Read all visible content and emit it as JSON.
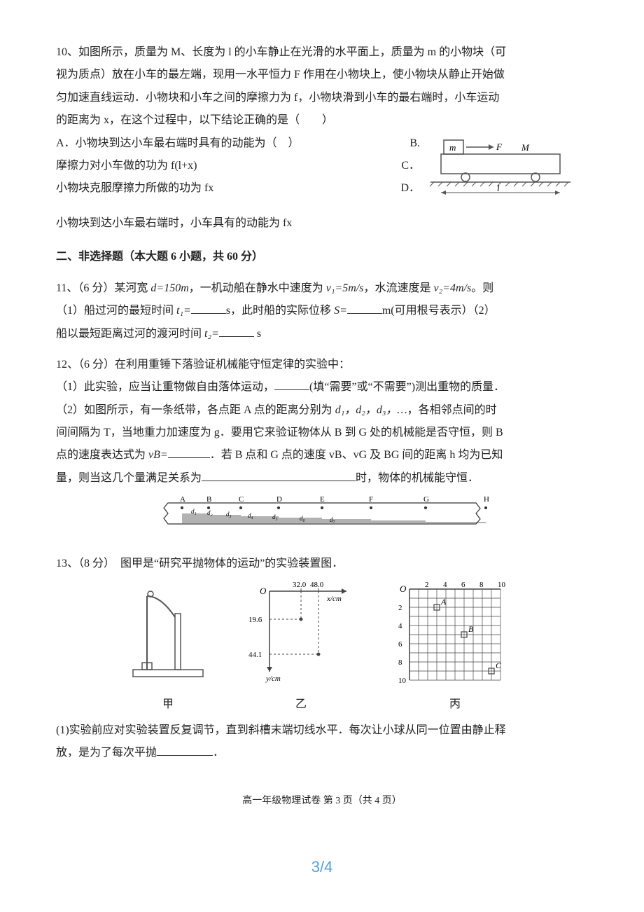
{
  "q10": {
    "stem_l1": "10、如图所示，质量为 M、长度为 l 的小车静止在光滑的水平面上，质量为 m 的小物块（可",
    "stem_l2": "视为质点）放在小车的最左端，现用一水平恒力 F 作用在小物块上，使小物块从静止开始做",
    "stem_l3": "匀加速直线运动．小物块和小车之间的摩擦力为 f，小物块滑到小车的最右端时，小车运动",
    "stem_l4": "的距离为 x，在这个过程中，以下结论正确的是（　　）",
    "optA": "A．小物块到达小车最右端时具有的动能为（　）",
    "optB_tail": "B.",
    "line_mid": "摩擦力对小车做的功为 f(l+x)",
    "optC_tail": "C．",
    "line_c": "小物块克服摩擦力所做的功为 fx",
    "optD_tail": "D．",
    "line_d": "小物块到达小车最右端时，小车具有的动能为 fx",
    "diagram": {
      "colors": {
        "stroke": "#444",
        "fill": "#fff"
      },
      "m_label": "m",
      "F_label": "F",
      "M_label": "M",
      "l_label": "l"
    }
  },
  "section2_title": "二、非选择题（本大题 6 小题，共 60 分）",
  "q11": {
    "l1a": "11、（6 分）某河宽 ",
    "d_eq": "d=150m",
    "l1b": "，一机动船在静水中速度为 ",
    "v1_eq": "v₁=5m/s",
    "l1c": "，水流速度是 ",
    "v2_eq": "v₂=4m/s",
    "l1d": "。则",
    "l2a": "（1）船过河的最短时间 ",
    "t1_lbl": "t₁=",
    "l2b": "s，此时船的实际位移 ",
    "S_lbl": "S=",
    "l2c": "m(可用根号表示）（2）",
    "l3a": "船以最短距离过河的渡河时间 ",
    "t2_lbl": "t₂=",
    "l3b": " s"
  },
  "q12": {
    "l1": "12、（6 分）在利用重锤下落验证机械能守恒定律的实验中：",
    "l2a": "（1）此实验，应当让重物做自由落体运动，",
    "l2b": "(填“需要”或“不需要”)测出重物的质量．",
    "l3a": "（2）如图所示，有一条纸带，各点距 A 点的距离分别为 ",
    "l3d": "d₁，d₂，d₃，…",
    "l3b": "，各相邻点间的时",
    "l4a": "间间隔为 T，当地重力加速度为 g．要用它来验证物体从 B 到 G 处的机械能是否守恒，则 B",
    "l5a": "点的速度表达式为 ",
    "vB_lbl": "vB=",
    "l5b": "．若 B 点和 G 点的速度 vB、vG 及 BG 间的距离 h 均为已知",
    "l6a": "量，则当这几个量满足关系为",
    "l6b": "时，物体的机械能守恒．",
    "tape": {
      "pts": [
        "A",
        "B",
        "C",
        "D",
        "E",
        "F",
        "G",
        "H"
      ],
      "dlabels": [
        "d₁",
        "d₂",
        "d₃",
        "d₄",
        "d₅",
        "d₆",
        "d₇"
      ],
      "stroke": "#333"
    }
  },
  "q13": {
    "l1": "13、（8 分）　图甲是“研究平抛物体的运动”的实验装置图．",
    "fig_jia": "甲",
    "fig_yi": "乙",
    "fig_bing": "丙",
    "yi": {
      "x_ticks": [
        "32.0",
        "48.0"
      ],
      "x_label": "x/cm",
      "y_ticks": [
        "19.6",
        "44.1"
      ],
      "y_label": "y/cm",
      "O": "O",
      "stroke": "#444"
    },
    "bing": {
      "O": "O",
      "x_ticks": [
        "2",
        "4",
        "6",
        "8",
        "10"
      ],
      "y_ticks": [
        "2",
        "4",
        "6",
        "8",
        "10"
      ],
      "pt_labels": [
        "A",
        "B",
        "C"
      ],
      "stroke": "#444"
    },
    "l2a": "(1)实验前应对实验装置反复调节，直到斜槽末端切线水平．每次让小球从同一位置由静止释",
    "l3a": "放，是为了每次平抛",
    "l3b": "．"
  },
  "footer": "高一年级物理试卷 第 3 页（共 4 页）",
  "page_num": "3/4"
}
